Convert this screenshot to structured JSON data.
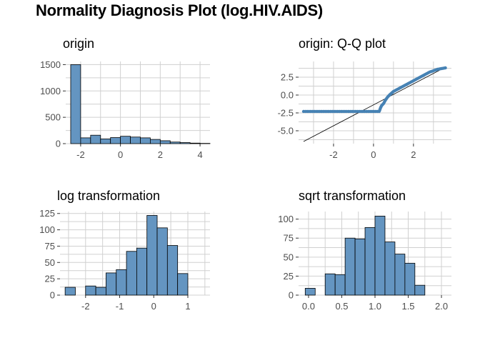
{
  "figure_title": "Normality Diagnosis Plot (log.HIV.AIDS)",
  "colors": {
    "fill": "#6495c1",
    "point": "#4682b4",
    "grid": "#d0d0d0",
    "bar_border": "#000000"
  },
  "chart_data": [
    {
      "id": "origin",
      "type": "bar",
      "title": "origin",
      "bin_width": 0.5,
      "bins": [
        {
          "x0": -2.5,
          "x1": -2.0,
          "count": 1500
        },
        {
          "x0": -2.0,
          "x1": -1.5,
          "count": 110
        },
        {
          "x0": -1.5,
          "x1": -1.0,
          "count": 160
        },
        {
          "x0": -1.0,
          "x1": -0.5,
          "count": 90
        },
        {
          "x0": -0.5,
          "x1": 0.0,
          "count": 115
        },
        {
          "x0": 0.0,
          "x1": 0.5,
          "count": 140
        },
        {
          "x0": 0.5,
          "x1": 1.0,
          "count": 125
        },
        {
          "x0": 1.0,
          "x1": 1.5,
          "count": 110
        },
        {
          "x0": 1.5,
          "x1": 2.0,
          "count": 80
        },
        {
          "x0": 2.0,
          "x1": 2.5,
          "count": 55
        },
        {
          "x0": 2.5,
          "x1": 3.0,
          "count": 30
        },
        {
          "x0": 3.0,
          "x1": 3.5,
          "count": 20
        },
        {
          "x0": 3.5,
          "x1": 4.0,
          "count": 10
        },
        {
          "x0": 4.0,
          "x1": 4.5,
          "count": 5
        }
      ],
      "xlim": [
        -2.75,
        4.5
      ],
      "ylim": [
        0,
        1560
      ],
      "xticks": [
        -2,
        0,
        2,
        4
      ],
      "xtick_labels": [
        "-2",
        "0",
        "2",
        "4"
      ],
      "yticks": [
        0,
        500,
        1000,
        1500
      ],
      "ytick_labels": [
        "0",
        "500",
        "1000",
        "1500"
      ],
      "xlabel": "",
      "ylabel": "",
      "grid": true
    },
    {
      "id": "qq",
      "type": "scatter",
      "title": "origin: Q-Q plot",
      "points_desc": "sample quantiles vs theoretical quantiles",
      "flat_segment": {
        "x_from": -3.5,
        "x_to": 0.3,
        "y": -2.3
      },
      "curve_points": [
        [
          0.3,
          -2.2
        ],
        [
          0.35,
          -1.8
        ],
        [
          0.4,
          -1.5
        ],
        [
          0.5,
          -1.2
        ],
        [
          0.6,
          -0.7
        ],
        [
          0.7,
          -0.3
        ],
        [
          0.8,
          0.0
        ],
        [
          0.9,
          0.25
        ],
        [
          1.0,
          0.5
        ],
        [
          1.2,
          0.8
        ],
        [
          1.4,
          1.1
        ],
        [
          1.6,
          1.4
        ],
        [
          1.8,
          1.7
        ],
        [
          2.0,
          2.0
        ],
        [
          2.2,
          2.3
        ],
        [
          2.4,
          2.6
        ],
        [
          2.6,
          2.9
        ],
        [
          2.8,
          3.2
        ],
        [
          3.0,
          3.4
        ],
        [
          3.2,
          3.6
        ],
        [
          3.4,
          3.7
        ],
        [
          3.6,
          3.8
        ]
      ],
      "reference_line": {
        "x1": -3.5,
        "y1": -6.5,
        "x2": 3.6,
        "y2": 3.9
      },
      "xlim": [
        -3.75,
        3.9
      ],
      "ylim": [
        -6.8,
        4.7
      ],
      "xticks": [
        -2,
        0,
        2
      ],
      "xtick_labels": [
        "-2",
        "0",
        "2"
      ],
      "yticks": [
        -5.0,
        -2.5,
        0.0,
        2.5
      ],
      "ytick_labels": [
        "-5.0",
        "-2.5",
        "0.0",
        "2.5"
      ],
      "xlabel": "",
      "ylabel": "",
      "grid": true
    },
    {
      "id": "log",
      "type": "bar",
      "title": "log transformation",
      "bin_width": 0.3,
      "bins": [
        {
          "x0": -2.6,
          "x1": -2.3,
          "count": 12
        },
        {
          "x0": -2.3,
          "x1": -2.0,
          "count": 0
        },
        {
          "x0": -2.0,
          "x1": -1.7,
          "count": 14
        },
        {
          "x0": -1.7,
          "x1": -1.4,
          "count": 12
        },
        {
          "x0": -1.4,
          "x1": -1.1,
          "count": 34
        },
        {
          "x0": -1.1,
          "x1": -0.8,
          "count": 39
        },
        {
          "x0": -0.8,
          "x1": -0.5,
          "count": 67
        },
        {
          "x0": -0.5,
          "x1": -0.2,
          "count": 72
        },
        {
          "x0": -0.2,
          "x1": 0.1,
          "count": 122
        },
        {
          "x0": 0.1,
          "x1": 0.4,
          "count": 103
        },
        {
          "x0": 0.4,
          "x1": 0.7,
          "count": 76
        },
        {
          "x0": 0.7,
          "x1": 1.0,
          "count": 33
        }
      ],
      "xlim": [
        -2.75,
        1.65
      ],
      "ylim": [
        0,
        128
      ],
      "xticks": [
        -2,
        -1,
        0,
        1
      ],
      "xtick_labels": [
        "-2",
        "-1",
        "0",
        "1"
      ],
      "yticks": [
        0,
        25,
        50,
        75,
        100,
        125
      ],
      "ytick_labels": [
        "0",
        "25",
        "50",
        "75",
        "100",
        "125"
      ],
      "xlabel": "",
      "ylabel": "",
      "grid": true
    },
    {
      "id": "sqrt",
      "type": "bar",
      "title": "sqrt transformation",
      "bin_width": 0.15,
      "bins": [
        {
          "x0": -0.05,
          "x1": 0.1,
          "count": 9
        },
        {
          "x0": 0.1,
          "x1": 0.25,
          "count": 0
        },
        {
          "x0": 0.25,
          "x1": 0.4,
          "count": 28
        },
        {
          "x0": 0.4,
          "x1": 0.55,
          "count": 27
        },
        {
          "x0": 0.55,
          "x1": 0.7,
          "count": 75
        },
        {
          "x0": 0.7,
          "x1": 0.85,
          "count": 74
        },
        {
          "x0": 0.85,
          "x1": 1.0,
          "count": 89
        },
        {
          "x0": 1.0,
          "x1": 1.15,
          "count": 104
        },
        {
          "x0": 1.15,
          "x1": 1.3,
          "count": 70
        },
        {
          "x0": 1.3,
          "x1": 1.45,
          "count": 54
        },
        {
          "x0": 1.45,
          "x1": 1.6,
          "count": 42
        },
        {
          "x0": 1.6,
          "x1": 1.75,
          "count": 13
        }
      ],
      "xlim": [
        -0.15,
        2.15
      ],
      "ylim": [
        0,
        110
      ],
      "xticks": [
        0.0,
        0.5,
        1.0,
        1.5,
        2.0
      ],
      "xtick_labels": [
        "0.0",
        "0.5",
        "1.0",
        "1.5",
        "2.0"
      ],
      "yticks": [
        0,
        25,
        50,
        75,
        100
      ],
      "ytick_labels": [
        "0",
        "25",
        "50",
        "75",
        "100"
      ],
      "xlabel": "",
      "ylabel": "",
      "grid": true
    }
  ]
}
